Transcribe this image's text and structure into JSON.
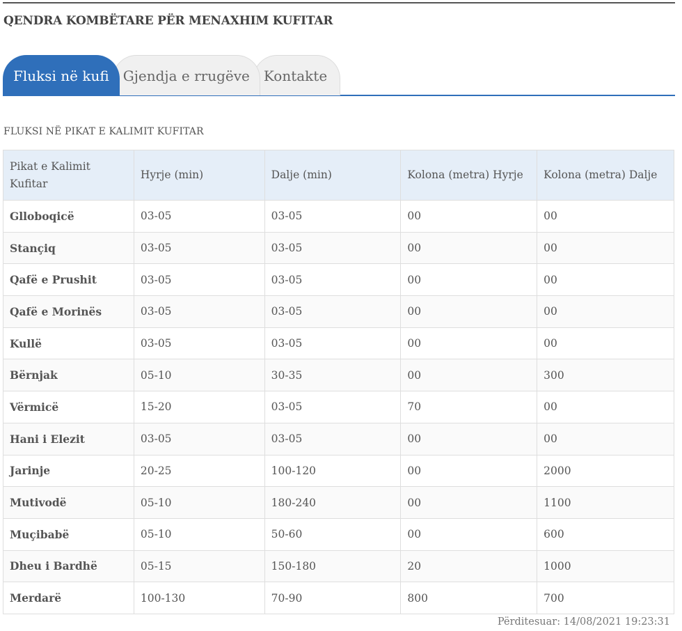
{
  "header": {
    "title": "QENDRA KOMBËTARE PËR MENAXHIM KUFITAR"
  },
  "tabs": [
    {
      "label": "Fluksi në kufi",
      "active": true
    },
    {
      "label": "Gjendja e rrugëve",
      "active": false
    },
    {
      "label": "Kontakte",
      "active": false
    }
  ],
  "section": {
    "title": "FLUKSI NË PIKAT E KALIMIT KUFITAR"
  },
  "table": {
    "headers": [
      "Pikat e Kalimit Kufitar",
      "Hyrje (min)",
      "Dalje (min)",
      "Kolona (metra) Hyrje",
      "Kolona (metra) Dalje"
    ],
    "rows": [
      [
        "Glloboqicë",
        "03-05",
        "03-05",
        "00",
        "00"
      ],
      [
        "Stançiq",
        "03-05",
        "03-05",
        "00",
        "00"
      ],
      [
        "Qafë e Prushit",
        "03-05",
        "03-05",
        "00",
        "00"
      ],
      [
        "Qafë e Morinës",
        "03-05",
        "03-05",
        "00",
        "00"
      ],
      [
        "Kullë",
        "03-05",
        "03-05",
        "00",
        "00"
      ],
      [
        "Bërnjak",
        "05-10",
        "30-35",
        "00",
        "300"
      ],
      [
        "Vërmicë",
        "15-20",
        "03-05",
        "70",
        "00"
      ],
      [
        "Hani i Elezit",
        "03-05",
        "03-05",
        "00",
        "00"
      ],
      [
        "Jarinje",
        "20-25",
        "100-120",
        "00",
        "2000"
      ],
      [
        "Mutivodë",
        "05-10",
        "180-240",
        "00",
        "1100"
      ],
      [
        "Muçibabë",
        "05-10",
        "50-60",
        "00",
        "600"
      ],
      [
        "Dheu i Bardhë",
        "05-15",
        "150-180",
        "20",
        "1000"
      ],
      [
        "Merdarë",
        "100-130",
        "70-90",
        "800",
        "700"
      ]
    ]
  },
  "footer": {
    "updated": "Përditesuar: 14/08/2021 19:23:31"
  },
  "colors": {
    "accent": "#2f6fba",
    "header_bg": "#e5eef8"
  }
}
